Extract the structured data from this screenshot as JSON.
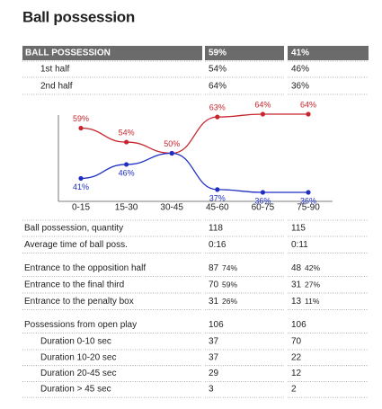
{
  "title": "Ball possession",
  "header": {
    "label": "BALL POSSESSION",
    "team1": "59%",
    "team2": "41%",
    "breakdown": [
      {
        "label": "1st half",
        "team1": "54%",
        "team2": "46%"
      },
      {
        "label": "2nd half",
        "team1": "64%",
        "team2": "36%"
      }
    ]
  },
  "chart": {
    "type": "line",
    "categories": [
      "0-15",
      "15-30",
      "30-45",
      "45-60",
      "60-75",
      "75-90"
    ],
    "series": [
      {
        "color": "#c8252c",
        "values": [
          59,
          54,
          50,
          63,
          64,
          64
        ],
        "value_labels": [
          "59%",
          "54%",
          "50%",
          "63%",
          "64%",
          "64%"
        ]
      },
      {
        "color": "#1f2fc4",
        "values": [
          41,
          46,
          50,
          37,
          36,
          36
        ],
        "value_labels": [
          "41%",
          "46%",
          null,
          "37%",
          "36%",
          "36%"
        ]
      }
    ]
  },
  "groups": [
    [
      {
        "label": "Ball possession, quantity",
        "team1": "118",
        "team2": "115"
      },
      {
        "label": "Average time of ball poss.",
        "team1": "0:16",
        "team2": "0:11"
      }
    ],
    [
      {
        "label": "Entrance to the opposition half",
        "team1": "87",
        "team1_share": "74%",
        "team2": "48",
        "team2_share": "42%"
      },
      {
        "label": "Entrance to the final third",
        "team1": "70",
        "team1_share": "59%",
        "team2": "31",
        "team2_share": "27%"
      },
      {
        "label": "Entrance to the penalty box",
        "team1": "31",
        "team1_share": "26%",
        "team2": "13",
        "team2_share": "11%"
      }
    ],
    [
      {
        "label": "Possessions from open play",
        "team1": "106",
        "team2": "106",
        "breakdown": [
          {
            "label": "Duration 0-10 sec",
            "team1": "37",
            "team2": "70"
          },
          {
            "label": "Duration 10-20 sec",
            "team1": "37",
            "team2": "22"
          },
          {
            "label": "Duration 20-45 sec",
            "team1": "29",
            "team2": "12"
          },
          {
            "label": "Duration > 45 sec",
            "team1": "3",
            "team2": "2"
          }
        ]
      }
    ]
  ]
}
